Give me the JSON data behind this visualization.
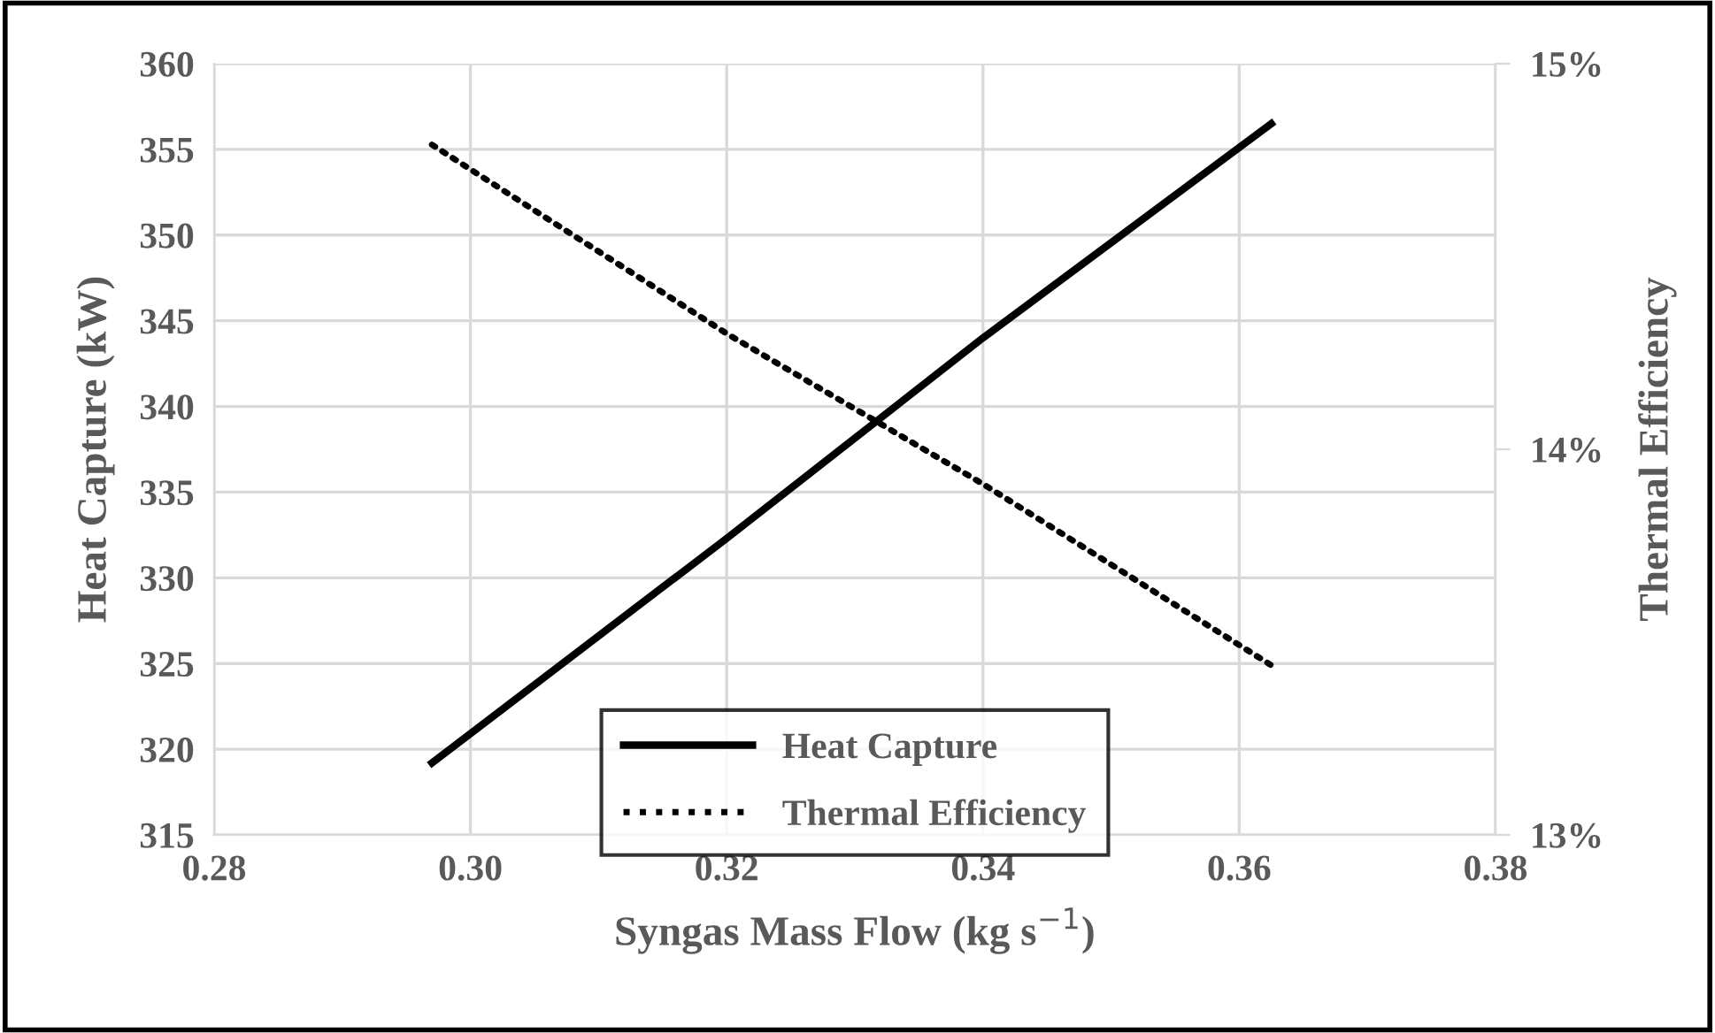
{
  "chart_data": {
    "type": "line",
    "xlabel": "Syngas Mass Flow (kg s$^{−1}$)",
    "ylabel": "Heat Capture (kW)",
    "y2label": "Thermal Efficiency",
    "xlim": [
      0.28,
      0.38
    ],
    "xticks": [
      {
        "value": 0.28,
        "label": "0.28"
      },
      {
        "value": 0.3,
        "label": "0.30"
      },
      {
        "value": 0.32,
        "label": "0.32"
      },
      {
        "value": 0.34,
        "label": "0.34"
      },
      {
        "value": 0.36,
        "label": "0.36"
      },
      {
        "value": 0.38,
        "label": "0.38"
      }
    ],
    "ylim": [
      315,
      360
    ],
    "yticks": [
      315,
      320,
      325,
      330,
      335,
      340,
      345,
      350,
      355,
      360
    ],
    "y2lim": [
      13,
      15
    ],
    "y2ticks": [
      {
        "value": 13,
        "label": "13%"
      },
      {
        "value": 14,
        "label": "14%"
      },
      {
        "value": 15,
        "label": "15%"
      }
    ],
    "grid": true,
    "legend": "bottom",
    "marker": "none",
    "series": [
      {
        "name": "Heat Capture",
        "color": "#000000",
        "line_style": "solid",
        "x": [
          0.297,
          0.32,
          0.34,
          0.3625
        ],
        "values": [
          319.2,
          332.3,
          344.0,
          356.5
        ]
      },
      {
        "name": "Thermal Efficiency",
        "color": "#000000",
        "line_style": "dotted",
        "axis": "y2",
        "x": [
          0.297,
          0.32,
          0.34,
          0.3625
        ],
        "values": [
          14.79,
          14.3,
          13.91,
          13.44
        ]
      }
    ]
  }
}
